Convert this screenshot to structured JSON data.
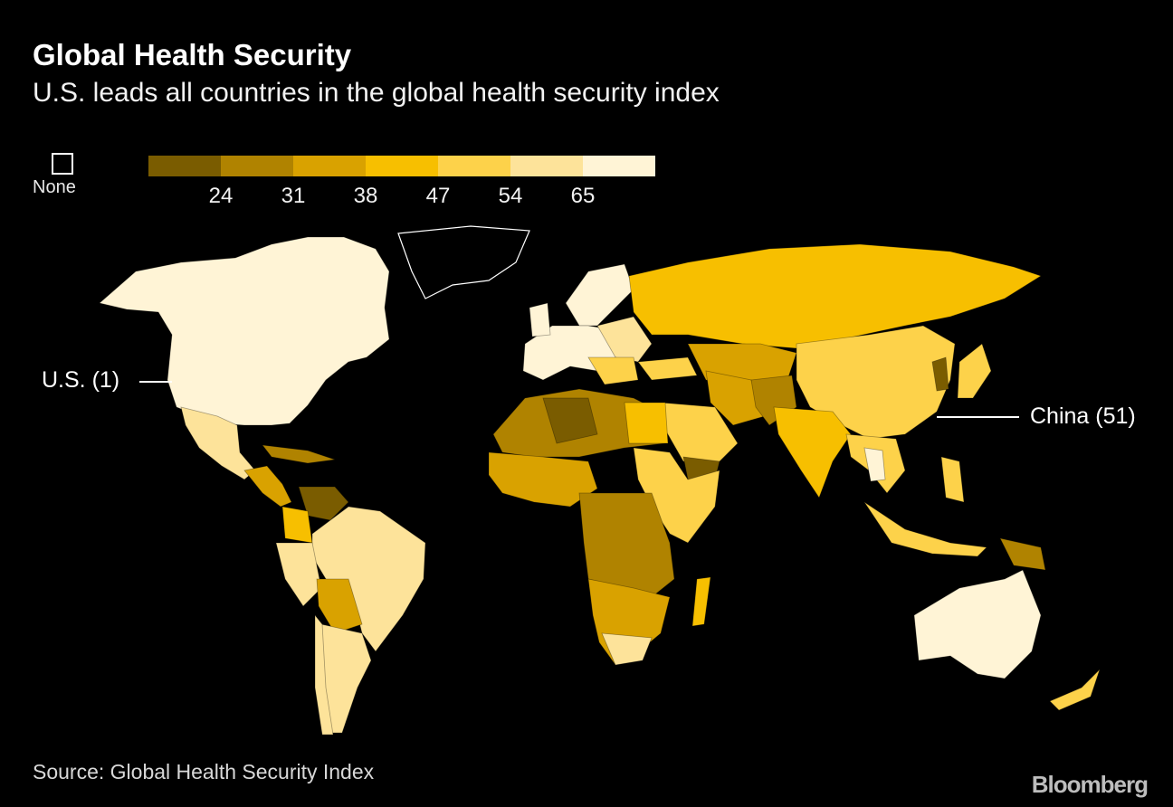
{
  "header": {
    "title": "Global Health Security",
    "subtitle": "U.S. leads all countries in the global health security index"
  },
  "legend": {
    "none_label": "None",
    "colors": [
      "#7a5c00",
      "#b08300",
      "#d9a200",
      "#f7bf00",
      "#fdd24a",
      "#fde39a",
      "#fff4d6"
    ],
    "ticks": [
      "24",
      "31",
      "38",
      "47",
      "54",
      "65"
    ]
  },
  "callouts": {
    "us": "U.S. (1)",
    "china": "China (51)"
  },
  "footer": {
    "source": "Source: Global Health Security Index",
    "brand": "Bloomberg"
  }
}
